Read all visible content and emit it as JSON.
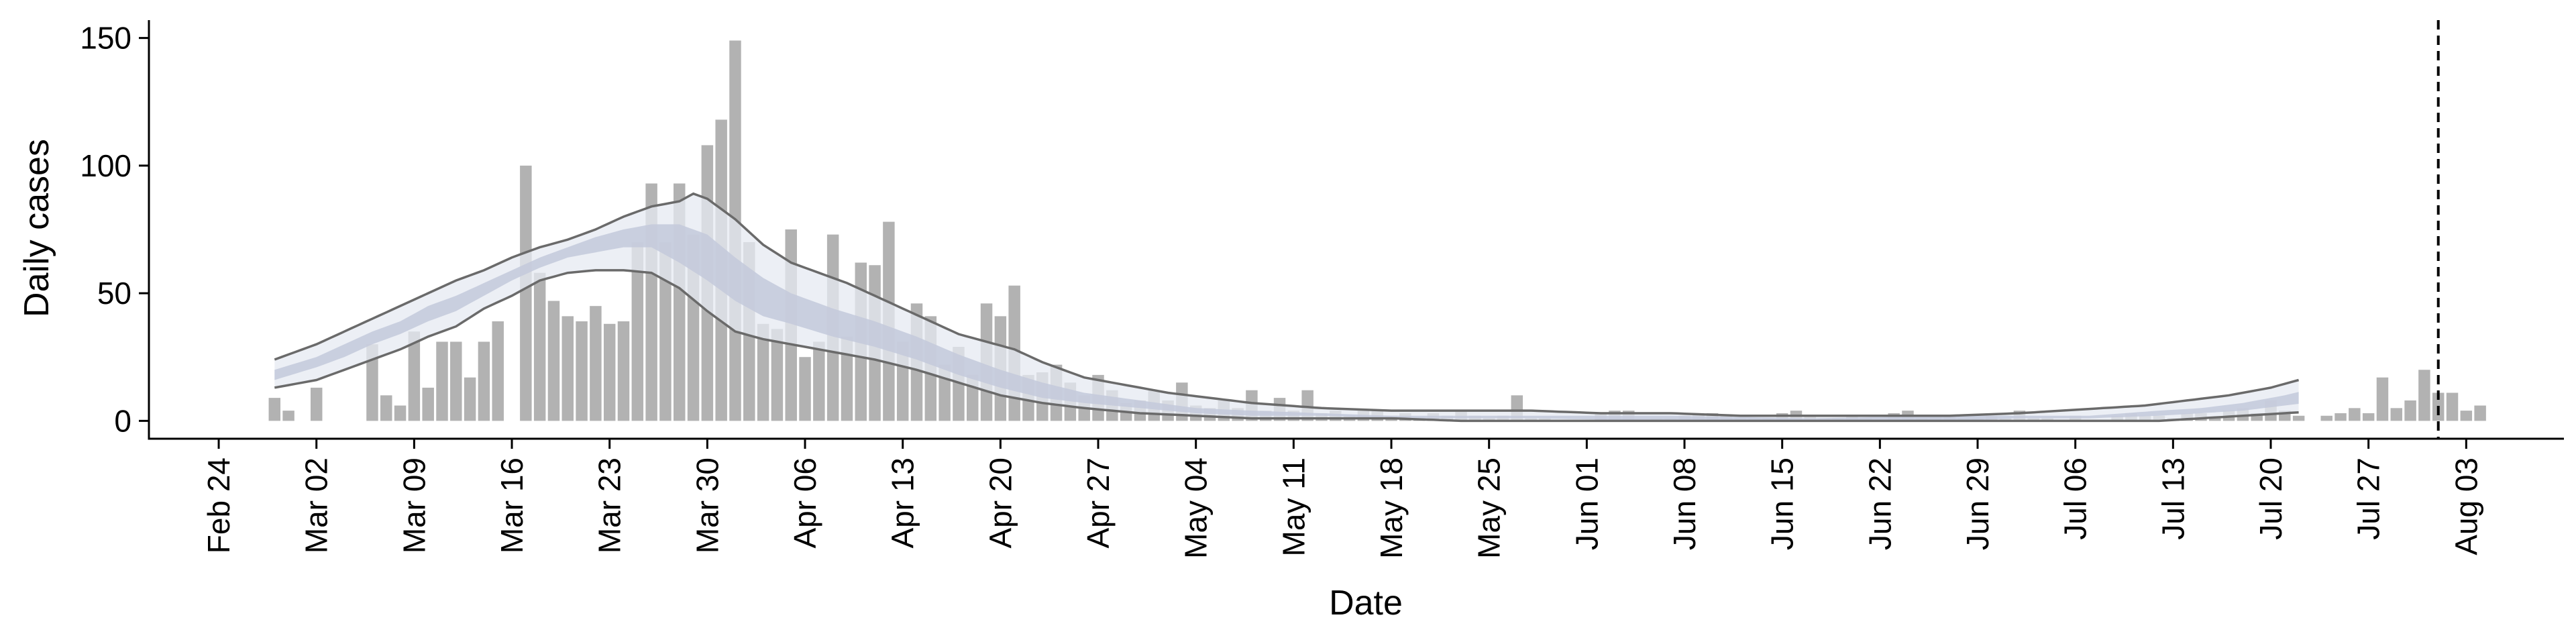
{
  "colors": {
    "bar": "#b2b2b2",
    "band_outer": "#e6e9f2",
    "band_inner": "#c3c9db",
    "band_line": "#6a6a6a",
    "axis": "#000000",
    "vline": "#000000"
  },
  "chart_data": {
    "type": "bar",
    "xlabel": "Date",
    "ylabel": "Daily cases",
    "ylim": [
      -7,
      157
    ],
    "yticks": [
      0,
      50,
      100,
      150
    ],
    "xlim": [
      "2020-02-19",
      "2020-08-10"
    ],
    "xticks": [
      "2020-02-24",
      "2020-03-02",
      "2020-03-09",
      "2020-03-16",
      "2020-03-23",
      "2020-03-30",
      "2020-04-06",
      "2020-04-13",
      "2020-04-20",
      "2020-04-27",
      "2020-05-04",
      "2020-05-11",
      "2020-05-18",
      "2020-05-25",
      "2020-06-01",
      "2020-06-08",
      "2020-06-15",
      "2020-06-22",
      "2020-06-29",
      "2020-07-06",
      "2020-07-13",
      "2020-07-20",
      "2020-07-27",
      "2020-08-03"
    ],
    "xtick_labels": [
      "Feb 24",
      "Mar 02",
      "Mar 09",
      "Mar 16",
      "Mar 23",
      "Mar 30",
      "Apr 06",
      "Apr 13",
      "Apr 20",
      "Apr 27",
      "May 04",
      "May 11",
      "May 18",
      "May 25",
      "Jun 01",
      "Jun 08",
      "Jun 15",
      "Jun 22",
      "Jun 29",
      "Jul 06",
      "Jul 13",
      "Jul 20",
      "Jul 27",
      "Aug 03"
    ],
    "bar_start": "2020-02-28",
    "values": [
      9,
      4,
      0,
      13,
      0,
      0,
      0,
      30,
      10,
      6,
      35,
      13,
      31,
      31,
      17,
      31,
      39,
      0,
      100,
      58,
      47,
      41,
      39,
      45,
      38,
      39,
      70,
      93,
      70,
      93,
      73,
      108,
      118,
      149,
      70,
      38,
      36,
      75,
      25,
      31,
      73,
      33,
      62,
      61,
      78,
      31,
      46,
      41,
      22,
      29,
      18,
      46,
      41,
      53,
      18,
      19,
      22,
      15,
      10,
      18,
      12,
      7,
      8,
      12,
      8,
      15,
      6,
      5,
      8,
      5,
      12,
      4,
      9,
      4,
      12,
      3,
      4,
      2,
      4,
      4,
      2,
      3,
      1,
      3,
      2,
      4,
      2,
      1,
      2,
      10,
      1,
      1,
      0,
      0,
      0,
      3,
      4,
      4,
      0,
      1,
      1,
      2,
      3,
      3,
      2,
      1,
      1,
      1,
      3,
      4,
      2,
      1,
      1,
      2,
      1,
      0,
      3,
      4,
      1,
      2,
      2,
      1,
      1,
      2,
      1,
      4,
      1,
      1,
      0,
      2,
      0,
      0,
      2,
      3,
      2,
      2,
      1,
      3,
      3,
      1,
      4,
      5,
      3,
      8,
      4,
      2,
      0,
      2,
      3,
      5,
      3,
      17,
      5,
      8,
      20,
      11,
      11,
      4,
      6
    ],
    "band_start": "2020-02-28",
    "band_end": "2020-07-22",
    "band_outer_low_pts": [
      [
        0,
        13
      ],
      [
        3,
        16
      ],
      [
        5,
        20
      ],
      [
        7,
        24
      ],
      [
        9,
        28
      ],
      [
        11,
        33
      ],
      [
        13,
        37
      ],
      [
        15,
        44
      ],
      [
        17,
        49
      ],
      [
        19,
        55
      ],
      [
        21,
        58
      ],
      [
        23,
        59
      ],
      [
        25,
        59
      ],
      [
        27,
        58
      ],
      [
        29,
        52
      ],
      [
        31,
        43
      ],
      [
        33,
        35
      ],
      [
        35,
        32
      ],
      [
        37,
        30
      ],
      [
        40,
        27
      ],
      [
        43,
        24
      ],
      [
        46,
        20
      ],
      [
        49,
        15
      ],
      [
        52,
        10
      ],
      [
        55,
        7
      ],
      [
        58,
        5
      ],
      [
        62,
        3
      ],
      [
        66,
        2
      ],
      [
        70,
        1
      ],
      [
        75,
        1
      ],
      [
        80,
        1
      ],
      [
        85,
        0
      ],
      [
        90,
        0
      ],
      [
        100,
        0
      ],
      [
        110,
        0
      ],
      [
        120,
        0
      ],
      [
        125,
        0
      ],
      [
        130,
        0
      ],
      [
        135,
        0
      ],
      [
        138,
        1
      ],
      [
        141,
        2
      ],
      [
        144,
        3
      ],
      [
        147,
        4
      ]
    ],
    "band_outer_high_pts": [
      [
        0,
        24
      ],
      [
        3,
        30
      ],
      [
        5,
        35
      ],
      [
        7,
        40
      ],
      [
        9,
        45
      ],
      [
        11,
        50
      ],
      [
        13,
        55
      ],
      [
        15,
        59
      ],
      [
        17,
        64
      ],
      [
        19,
        68
      ],
      [
        21,
        71
      ],
      [
        23,
        75
      ],
      [
        25,
        80
      ],
      [
        27,
        84
      ],
      [
        29,
        86
      ],
      [
        30,
        89
      ],
      [
        31,
        87
      ],
      [
        33,
        79
      ],
      [
        35,
        69
      ],
      [
        37,
        62
      ],
      [
        39,
        58
      ],
      [
        41,
        54
      ],
      [
        43,
        49
      ],
      [
        45,
        44
      ],
      [
        47,
        39
      ],
      [
        49,
        34
      ],
      [
        51,
        31
      ],
      [
        53,
        28
      ],
      [
        55,
        23
      ],
      [
        58,
        17
      ],
      [
        61,
        14
      ],
      [
        64,
        11
      ],
      [
        67,
        9
      ],
      [
        70,
        7
      ],
      [
        75,
        5
      ],
      [
        80,
        4
      ],
      [
        85,
        4
      ],
      [
        90,
        4
      ],
      [
        95,
        3
      ],
      [
        100,
        3
      ],
      [
        105,
        2
      ],
      [
        110,
        2
      ],
      [
        115,
        2
      ],
      [
        120,
        2
      ],
      [
        125,
        3
      ],
      [
        128,
        4
      ],
      [
        131,
        5
      ],
      [
        134,
        6
      ],
      [
        137,
        8
      ],
      [
        140,
        10
      ],
      [
        143,
        13
      ],
      [
        145,
        16
      ],
      [
        147,
        21
      ]
    ],
    "band_inner_low_pts": [
      [
        0,
        16
      ],
      [
        3,
        21
      ],
      [
        5,
        25
      ],
      [
        7,
        30
      ],
      [
        9,
        34
      ],
      [
        11,
        39
      ],
      [
        13,
        43
      ],
      [
        15,
        49
      ],
      [
        17,
        55
      ],
      [
        19,
        60
      ],
      [
        21,
        64
      ],
      [
        23,
        66
      ],
      [
        25,
        68
      ],
      [
        27,
        68
      ],
      [
        29,
        62
      ],
      [
        31,
        55
      ],
      [
        33,
        47
      ],
      [
        35,
        41
      ],
      [
        37,
        38
      ],
      [
        40,
        33
      ],
      [
        43,
        29
      ],
      [
        46,
        24
      ],
      [
        49,
        18
      ],
      [
        52,
        13
      ],
      [
        55,
        9
      ],
      [
        58,
        7
      ],
      [
        62,
        5
      ],
      [
        66,
        3
      ],
      [
        70,
        2
      ],
      [
        75,
        2
      ],
      [
        80,
        1
      ],
      [
        85,
        1
      ],
      [
        90,
        1
      ],
      [
        100,
        0
      ],
      [
        110,
        0
      ],
      [
        120,
        0
      ],
      [
        125,
        1
      ],
      [
        130,
        1
      ],
      [
        135,
        2
      ],
      [
        138,
        3
      ],
      [
        141,
        4
      ],
      [
        144,
        6
      ],
      [
        147,
        8
      ]
    ],
    "band_inner_high_pts": [
      [
        0,
        20
      ],
      [
        3,
        25
      ],
      [
        5,
        30
      ],
      [
        7,
        35
      ],
      [
        9,
        39
      ],
      [
        11,
        45
      ],
      [
        13,
        49
      ],
      [
        15,
        54
      ],
      [
        17,
        59
      ],
      [
        19,
        64
      ],
      [
        21,
        68
      ],
      [
        23,
        72
      ],
      [
        25,
        75
      ],
      [
        27,
        77
      ],
      [
        29,
        77
      ],
      [
        31,
        73
      ],
      [
        33,
        64
      ],
      [
        35,
        56
      ],
      [
        37,
        50
      ],
      [
        40,
        44
      ],
      [
        43,
        39
      ],
      [
        46,
        33
      ],
      [
        49,
        26
      ],
      [
        52,
        20
      ],
      [
        55,
        15
      ],
      [
        58,
        11
      ],
      [
        62,
        8
      ],
      [
        66,
        5
      ],
      [
        70,
        4
      ],
      [
        75,
        3
      ],
      [
        80,
        2
      ],
      [
        85,
        2
      ],
      [
        90,
        2
      ],
      [
        100,
        2
      ],
      [
        110,
        1
      ],
      [
        120,
        2
      ],
      [
        125,
        2
      ],
      [
        130,
        2
      ],
      [
        135,
        4
      ],
      [
        138,
        5
      ],
      [
        141,
        7
      ],
      [
        144,
        10
      ],
      [
        147,
        14
      ]
    ],
    "vline": "2020-08-01"
  }
}
